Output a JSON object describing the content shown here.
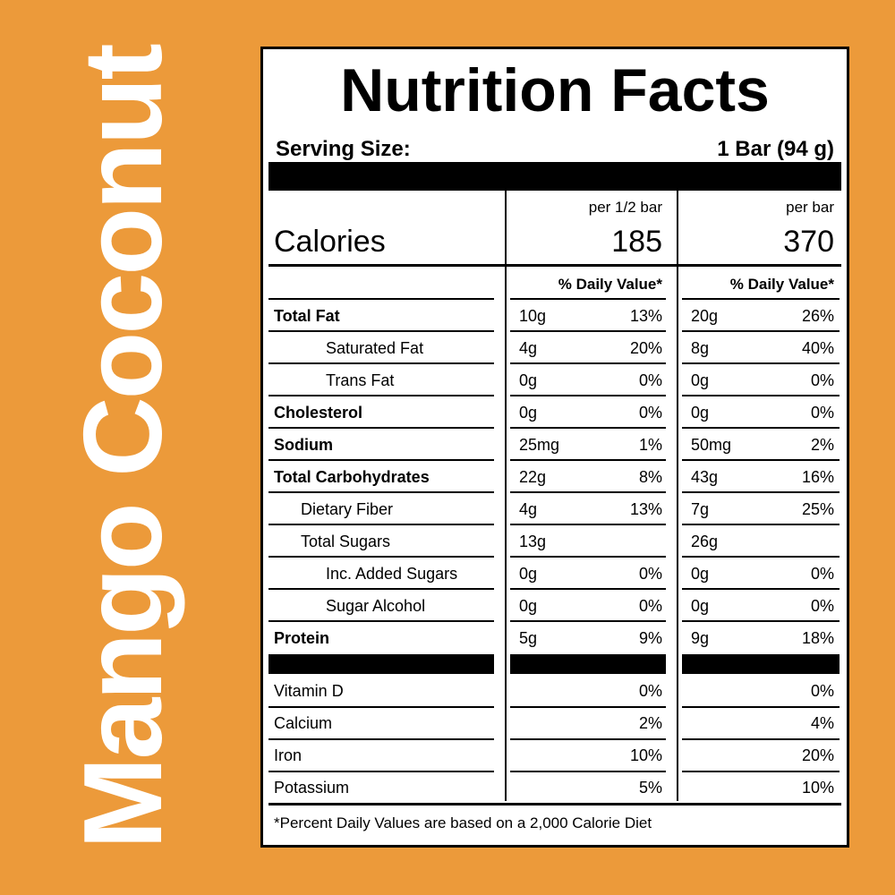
{
  "product_name": "Mango Coconut",
  "label": {
    "title": "Nutrition Facts",
    "serving_size_label": "Serving Size:",
    "serving_size_value": "1 Bar (94 g)",
    "calories_label": "Calories",
    "columns": [
      {
        "header": "per 1/2 bar",
        "calories": "185",
        "dv_header": "% Daily Value*"
      },
      {
        "header": "per bar",
        "calories": "370",
        "dv_header": "% Daily Value*"
      }
    ],
    "nutrients": [
      {
        "name": "Total Fat",
        "bold": true,
        "indent": 0,
        "c1_amount": "10g",
        "c1_dv": "13%",
        "c2_amount": "20g",
        "c2_dv": "26%"
      },
      {
        "name": "Saturated Fat",
        "bold": false,
        "indent": 2,
        "c1_amount": "4g",
        "c1_dv": "20%",
        "c2_amount": "8g",
        "c2_dv": "40%"
      },
      {
        "name": "Trans Fat",
        "bold": false,
        "indent": 2,
        "c1_amount": "0g",
        "c1_dv": "0%",
        "c2_amount": "0g",
        "c2_dv": "0%"
      },
      {
        "name": "Cholesterol",
        "bold": true,
        "indent": 0,
        "c1_amount": "0g",
        "c1_dv": "0%",
        "c2_amount": "0g",
        "c2_dv": "0%"
      },
      {
        "name": "Sodium",
        "bold": true,
        "indent": 0,
        "c1_amount": "25mg",
        "c1_dv": "1%",
        "c2_amount": "50mg",
        "c2_dv": "2%"
      },
      {
        "name": "Total Carbohydrates",
        "bold": true,
        "indent": 0,
        "c1_amount": "22g",
        "c1_dv": "8%",
        "c2_amount": "43g",
        "c2_dv": "16%"
      },
      {
        "name": "Dietary Fiber",
        "bold": false,
        "indent": 1,
        "c1_amount": "4g",
        "c1_dv": "13%",
        "c2_amount": "7g",
        "c2_dv": "25%"
      },
      {
        "name": "Total Sugars",
        "bold": false,
        "indent": 1,
        "c1_amount": "13g",
        "c1_dv": "",
        "c2_amount": "26g",
        "c2_dv": ""
      },
      {
        "name": "Inc. Added Sugars",
        "bold": false,
        "indent": 2,
        "c1_amount": "0g",
        "c1_dv": "0%",
        "c2_amount": "0g",
        "c2_dv": "0%"
      },
      {
        "name": "Sugar Alcohol",
        "bold": false,
        "indent": 2,
        "c1_amount": "0g",
        "c1_dv": "0%",
        "c2_amount": "0g",
        "c2_dv": "0%"
      },
      {
        "name": "Protein",
        "bold": true,
        "indent": 0,
        "c1_amount": "5g",
        "c1_dv": "9%",
        "c2_amount": "9g",
        "c2_dv": "18%"
      }
    ],
    "vitamins": [
      {
        "name": "Vitamin D",
        "c1_dv": "0%",
        "c2_dv": "0%"
      },
      {
        "name": "Calcium",
        "c1_dv": "2%",
        "c2_dv": "4%"
      },
      {
        "name": "Iron",
        "c1_dv": "10%",
        "c2_dv": "20%"
      },
      {
        "name": "Potassium",
        "c1_dv": "5%",
        "c2_dv": "10%"
      }
    ],
    "footnote": "*Percent Daily Values are based on a 2,000 Calorie Diet"
  },
  "colors": {
    "background": "#ec9a3a",
    "label_bg": "#ffffff",
    "ink": "#000000"
  }
}
